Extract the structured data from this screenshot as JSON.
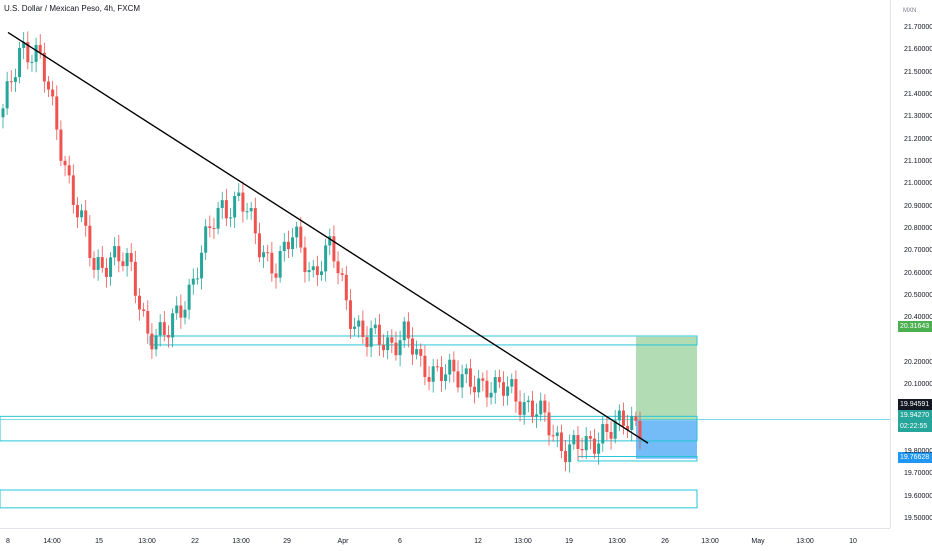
{
  "header": {
    "symbol_title": "U.S. Dollar / Mexican Peso, 4h, FXCM",
    "currency_unit": "MXN"
  },
  "colors": {
    "up": "#26a69a",
    "down": "#ef5350",
    "zone": "#26c6da",
    "profit_fill": "#a5d6a7",
    "loss_fill": "#64b5f6",
    "trendline": "#000000",
    "tag_target": "#4caf50",
    "tag_current": "#26a69a",
    "tag_close": "#131722",
    "tag_stop": "#2196f3"
  },
  "price_axis": {
    "ticks": [
      "21.70000",
      "21.60000",
      "21.50000",
      "21.40000",
      "21.30000",
      "21.20000",
      "21.10000",
      "21.00000",
      "20.90000",
      "20.80000",
      "20.70000",
      "20.60000",
      "20.50000",
      "20.40000",
      "20.20000",
      "20.10000",
      "19.80000",
      "19.70000",
      "19.60000",
      "19.50000"
    ],
    "tag_target": "20.31643",
    "tag_close": "19.94591",
    "tag_current": "19.94270",
    "tag_countdown": "02:22:55",
    "tag_stop": "19.76628"
  },
  "time_axis": {
    "labels": [
      "8",
      "14:00",
      "15",
      "13:00",
      "22",
      "13:00",
      "29",
      "Apr",
      "6",
      "12",
      "13:00",
      "19",
      "13:00",
      "26",
      "13:00",
      "May",
      "13:00",
      "10"
    ]
  },
  "chart_data": {
    "type": "candlestick",
    "interval": "4h",
    "ylim": [
      19.46,
      21.73
    ],
    "price_levels_annotated": {
      "take_profit": 20.31643,
      "entry_current": 19.9427,
      "last_close": 19.94591,
      "stop_loss": 19.76628
    },
    "trendline": {
      "from_price": 21.68,
      "to_price": 19.84
    },
    "zones": [
      {
        "name": "resistance-zone",
        "top": 20.32,
        "bottom": 20.28
      },
      {
        "name": "support-zone-upper",
        "top": 19.96,
        "bottom": 19.85
      },
      {
        "name": "support-zone-small",
        "top": 19.78,
        "bottom": 19.76
      },
      {
        "name": "support-zone-lower",
        "top": 19.63,
        "bottom": 19.55
      }
    ],
    "key_closes": [
      21.3,
      21.65,
      21.55,
      21.25,
      20.9,
      20.62,
      20.7,
      20.6,
      20.35,
      20.3,
      20.5,
      20.7,
      20.9,
      20.95,
      20.72,
      20.65,
      20.75,
      20.62,
      20.7,
      20.45,
      20.3,
      20.28,
      20.35,
      20.15,
      20.2,
      20.1,
      20.15,
      20.05,
      20.1,
      19.98,
      19.92,
      19.82,
      19.8,
      19.92,
      19.9,
      19.94
    ]
  }
}
